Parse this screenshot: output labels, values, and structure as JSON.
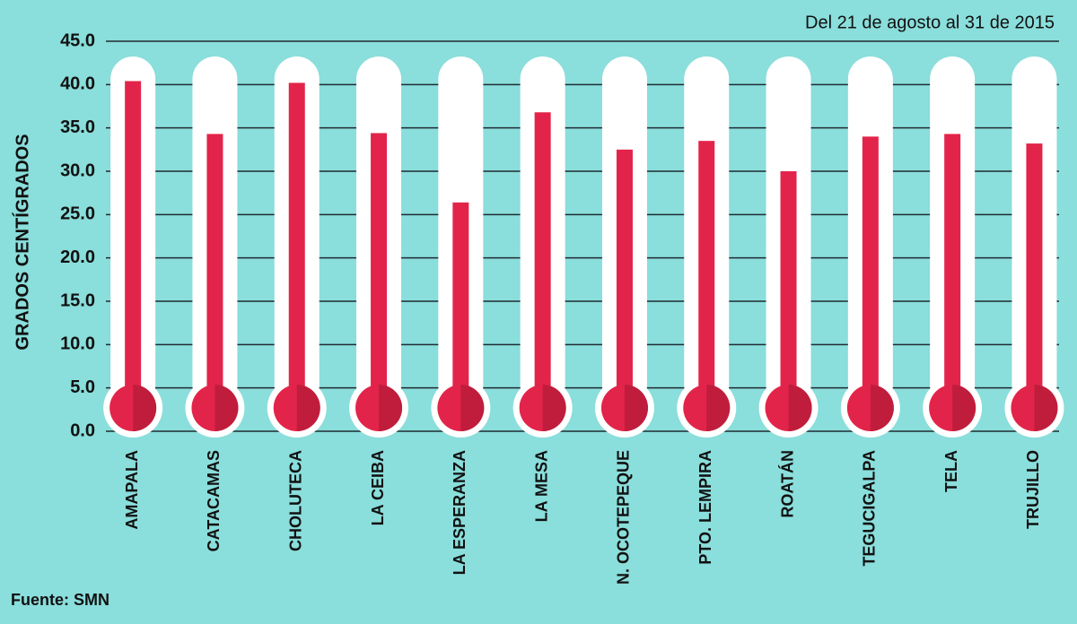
{
  "chart_data": {
    "type": "thermometer",
    "subtitle": "Del 21 de agosto al 31 de 2015",
    "y_label": "GRADOS CENTÍGRADOS",
    "source": "Fuente: SMN",
    "categories": [
      "AMAPALA",
      "CATACAMAS",
      "CHOLUTECA",
      "LA CEIBA",
      "LA ESPERANZA",
      "LA MESA",
      "N. OCOTEPEQUE",
      "PTO. LEMPIRA",
      "ROATÁN",
      "TEGUCIGALPA",
      "TELA",
      "TRUJILLO"
    ],
    "values": [
      40.4,
      34.3,
      40.2,
      34.4,
      26.4,
      36.8,
      32.5,
      33.5,
      30.0,
      34.0,
      34.3,
      33.2
    ],
    "color": "#e3244a",
    "ylim": [
      0,
      45
    ],
    "yticks": [
      {
        "value": 0,
        "label": "0.0"
      },
      {
        "value": 5,
        "label": "5.0"
      },
      {
        "value": 10,
        "label": "10.0"
      },
      {
        "value": 15,
        "label": "15.0"
      },
      {
        "value": 20,
        "label": "20.0"
      },
      {
        "value": 25,
        "label": "25.0"
      },
      {
        "value": 30,
        "label": "30.0"
      },
      {
        "value": 35,
        "label": "35.0"
      },
      {
        "value": 40,
        "label": "40.0"
      },
      {
        "value": 45,
        "label": "45.0"
      }
    ],
    "grid": true
  }
}
